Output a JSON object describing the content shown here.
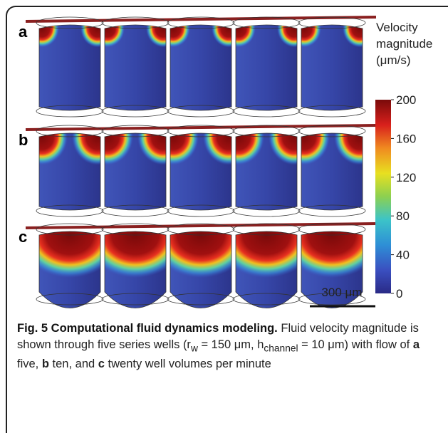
{
  "figure": {
    "panels": [
      "a",
      "b",
      "c"
    ],
    "colorbar": {
      "title_lines": [
        "Velocity",
        "magnitude",
        "(μm/s)"
      ],
      "lim": [
        0,
        200
      ],
      "ticks": [
        200,
        160,
        120,
        80,
        40,
        0
      ]
    },
    "scale_bar": "300 μm"
  },
  "caption": {
    "parts": [
      "Fig. 5 Computational fluid dynamics modeling.",
      " Fluid velocity magnitude is shown through five series wells (r",
      "w",
      " = 150 μm, h",
      "channel",
      " = 10 μm) with flow of ",
      "a",
      " five, ",
      "b",
      " ten, and ",
      "c",
      " twenty well volumes per minute"
    ]
  }
}
